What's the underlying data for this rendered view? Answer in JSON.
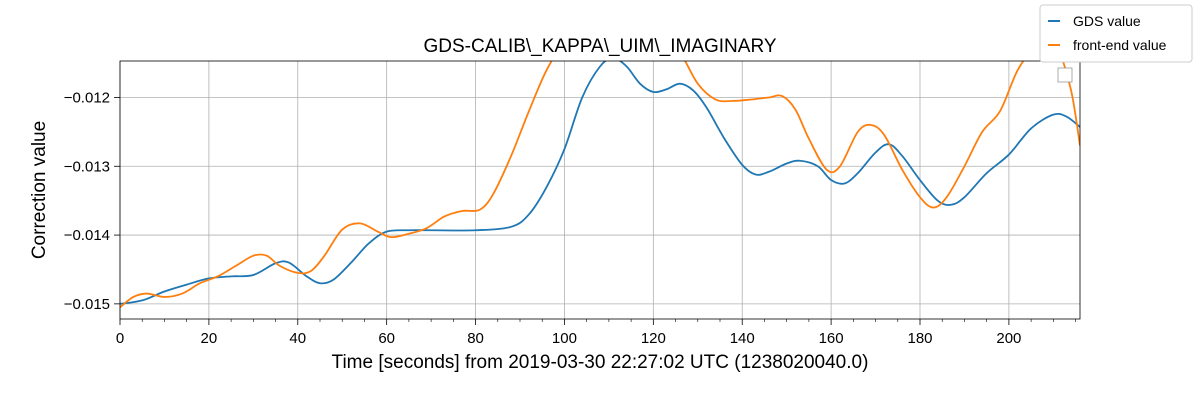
{
  "chart_data": {
    "type": "line",
    "title": "GDS-CALIB\\_KAPPA\\_UIM\\_IMAGINARY",
    "xlabel": "Time [seconds] from 2019-03-30 22:27:02 UTC (1238020040.0)",
    "ylabel": "Correction value",
    "xlim": [
      0,
      216
    ],
    "ylim": [
      -0.01522,
      -0.01147
    ],
    "x_ticks": [
      0,
      20,
      40,
      60,
      80,
      100,
      120,
      140,
      160,
      180,
      200
    ],
    "x_tick_labels": [
      "0",
      "20",
      "40",
      "60",
      "80",
      "100",
      "120",
      "140",
      "160",
      "180",
      "200"
    ],
    "y_ticks": [
      -0.015,
      -0.014,
      -0.013,
      -0.012
    ],
    "y_tick_labels": [
      "−0.015",
      "−0.014",
      "−0.013",
      "−0.012"
    ],
    "grid": true,
    "legend_position": "top-right",
    "series": [
      {
        "name": "GDS value",
        "color": "#1f77b4",
        "points": [
          [
            0,
            -0.015
          ],
          [
            5,
            -0.01495
          ],
          [
            10,
            -0.01482
          ],
          [
            15,
            -0.01472
          ],
          [
            20,
            -0.01463
          ],
          [
            25,
            -0.0146
          ],
          [
            30,
            -0.01458
          ],
          [
            35,
            -0.01441
          ],
          [
            38,
            -0.0144
          ],
          [
            42,
            -0.0146
          ],
          [
            45,
            -0.0147
          ],
          [
            48,
            -0.01465
          ],
          [
            52,
            -0.0144
          ],
          [
            56,
            -0.01412
          ],
          [
            60,
            -0.01395
          ],
          [
            65,
            -0.01393
          ],
          [
            70,
            -0.01393
          ],
          [
            80,
            -0.01393
          ],
          [
            88,
            -0.01388
          ],
          [
            92,
            -0.0137
          ],
          [
            96,
            -0.0133
          ],
          [
            100,
            -0.01275
          ],
          [
            104,
            -0.012
          ],
          [
            108,
            -0.01155
          ],
          [
            111,
            -0.01143
          ],
          [
            114,
            -0.01155
          ],
          [
            117,
            -0.0118
          ],
          [
            120,
            -0.01192
          ],
          [
            123,
            -0.01188
          ],
          [
            126,
            -0.0118
          ],
          [
            129,
            -0.0119
          ],
          [
            132,
            -0.01215
          ],
          [
            136,
            -0.0126
          ],
          [
            140,
            -0.01298
          ],
          [
            143,
            -0.01312
          ],
          [
            146,
            -0.01308
          ],
          [
            150,
            -0.01296
          ],
          [
            153,
            -0.01292
          ],
          [
            157,
            -0.013
          ],
          [
            160,
            -0.0132
          ],
          [
            163,
            -0.01325
          ],
          [
            166,
            -0.0131
          ],
          [
            170,
            -0.0128
          ],
          [
            173,
            -0.01268
          ],
          [
            176,
            -0.01285
          ],
          [
            180,
            -0.0132
          ],
          [
            184,
            -0.0135
          ],
          [
            187,
            -0.01356
          ],
          [
            190,
            -0.01345
          ],
          [
            195,
            -0.0131
          ],
          [
            200,
            -0.01283
          ],
          [
            205,
            -0.01245
          ],
          [
            210,
            -0.01225
          ],
          [
            213,
            -0.01228
          ],
          [
            216,
            -0.01243
          ]
        ]
      },
      {
        "name": "front-end value",
        "color": "#ff7f0e",
        "points": [
          [
            0,
            -0.01505
          ],
          [
            3,
            -0.0149
          ],
          [
            6,
            -0.01485
          ],
          [
            10,
            -0.0149
          ],
          [
            14,
            -0.01485
          ],
          [
            18,
            -0.0147
          ],
          [
            22,
            -0.0146
          ],
          [
            26,
            -0.01445
          ],
          [
            30,
            -0.0143
          ],
          [
            33,
            -0.0143
          ],
          [
            36,
            -0.01445
          ],
          [
            40,
            -0.01455
          ],
          [
            43,
            -0.01452
          ],
          [
            46,
            -0.0143
          ],
          [
            50,
            -0.01392
          ],
          [
            54,
            -0.01383
          ],
          [
            58,
            -0.01395
          ],
          [
            61,
            -0.01403
          ],
          [
            65,
            -0.01398
          ],
          [
            69,
            -0.0139
          ],
          [
            73,
            -0.01373
          ],
          [
            77,
            -0.01365
          ],
          [
            81,
            -0.01363
          ],
          [
            84,
            -0.0134
          ],
          [
            88,
            -0.01285
          ],
          [
            92,
            -0.0122
          ],
          [
            96,
            -0.0116
          ],
          [
            100,
            -0.0112
          ],
          [
            103,
            -0.01108
          ],
          [
            106,
            -0.01102
          ],
          [
            109,
            -0.0111
          ],
          [
            112,
            -0.01122
          ],
          [
            116,
            -0.01128
          ],
          [
            119,
            -0.0112
          ],
          [
            122,
            -0.01115
          ],
          [
            126,
            -0.01135
          ],
          [
            130,
            -0.0118
          ],
          [
            134,
            -0.01203
          ],
          [
            138,
            -0.01205
          ],
          [
            142,
            -0.01203
          ],
          [
            146,
            -0.012
          ],
          [
            149,
            -0.01198
          ],
          [
            152,
            -0.01218
          ],
          [
            155,
            -0.0126
          ],
          [
            159,
            -0.01305
          ],
          [
            162,
            -0.013
          ],
          [
            166,
            -0.0125
          ],
          [
            169,
            -0.0124
          ],
          [
            172,
            -0.01255
          ],
          [
            176,
            -0.01305
          ],
          [
            180,
            -0.01345
          ],
          [
            183,
            -0.0136
          ],
          [
            186,
            -0.01345
          ],
          [
            190,
            -0.013
          ],
          [
            194,
            -0.0125
          ],
          [
            198,
            -0.0122
          ],
          [
            202,
            -0.0116
          ],
          [
            206,
            -0.01125
          ],
          [
            208,
            -0.0112
          ],
          [
            211,
            -0.0113
          ],
          [
            214,
            -0.0119
          ],
          [
            216,
            -0.0127
          ]
        ]
      }
    ]
  }
}
